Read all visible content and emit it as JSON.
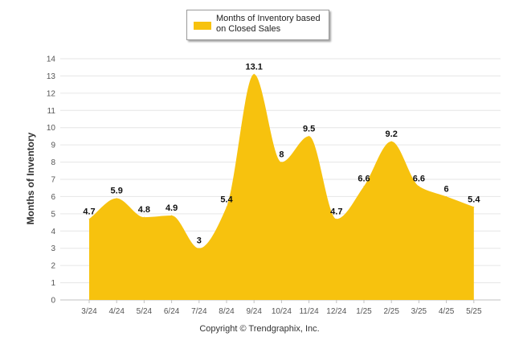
{
  "chart_data": {
    "type": "area",
    "categories": [
      "3/24",
      "4/24",
      "5/24",
      "6/24",
      "7/24",
      "8/24",
      "9/24",
      "10/24",
      "11/24",
      "12/24",
      "1/25",
      "2/25",
      "3/25",
      "4/25",
      "5/25"
    ],
    "series": [
      {
        "name": "Months of Inventory based on Closed Sales",
        "values": [
          4.7,
          5.9,
          4.8,
          4.9,
          3,
          5.4,
          13.1,
          8,
          9.5,
          4.7,
          6.6,
          9.2,
          6.6,
          6,
          5.4
        ],
        "color": "#f7c20e"
      }
    ],
    "ylabel": "Months of Inventory",
    "xlabel": "",
    "ylim": [
      0,
      14
    ],
    "yticks": [
      0,
      1,
      2,
      3,
      4,
      5,
      6,
      7,
      8,
      9,
      10,
      11,
      12,
      13,
      14
    ],
    "grid": true,
    "legend": "top-center",
    "data_labels": true
  },
  "legend": {
    "label": "Months of Inventory based on Closed Sales"
  },
  "footer": {
    "text": "Copyright © Trendgraphix, Inc."
  },
  "colors": {
    "area": "#f7c20e",
    "grid": "#e6e6e6",
    "axis": "#c0c0c0"
  }
}
